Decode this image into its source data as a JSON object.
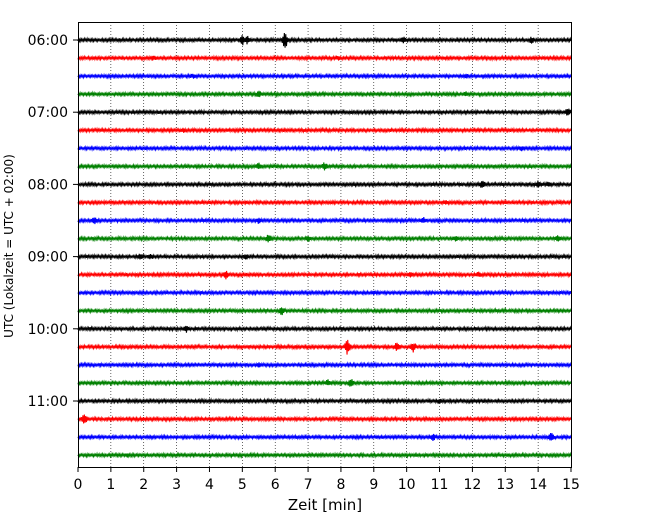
{
  "chart_data": {
    "type": "line",
    "title": "",
    "xlabel": "Zeit  [min]",
    "ylabel": "UTC (Lokalzeit = UTC + 02:00)",
    "xlim": [
      0,
      15
    ],
    "x_ticks": [
      0,
      1,
      2,
      3,
      4,
      5,
      6,
      7,
      8,
      9,
      10,
      11,
      12,
      13,
      14,
      15
    ],
    "grid": "vertical dotted",
    "trace_interval_minutes": 15,
    "y_tick_labels": [
      "06:00",
      "07:00",
      "08:00",
      "09:00",
      "10:00",
      "11:00"
    ],
    "series_colors": [
      "#000000",
      "#ff0000",
      "#0000ff",
      "#008000"
    ],
    "traces": [
      {
        "start": "06:00",
        "color": "#000000",
        "events": [
          {
            "t": 5.0,
            "amp": 5
          },
          {
            "t": 5.15,
            "amp": 4
          },
          {
            "t": 6.3,
            "amp": 8
          },
          {
            "t": 9.9,
            "amp": 3
          },
          {
            "t": 13.8,
            "amp": 3
          }
        ]
      },
      {
        "start": "06:15",
        "color": "#ff0000",
        "events": [
          {
            "t": 2.3,
            "amp": 2
          },
          {
            "t": 7.9,
            "amp": 2
          }
        ]
      },
      {
        "start": "06:30",
        "color": "#0000ff",
        "events": [
          {
            "t": 3.5,
            "amp": 2
          },
          {
            "t": 11.8,
            "amp": 2
          }
        ]
      },
      {
        "start": "06:45",
        "color": "#008000",
        "events": [
          {
            "t": 5.5,
            "amp": 3
          },
          {
            "t": 11.8,
            "amp": 2
          }
        ]
      },
      {
        "start": "07:00",
        "color": "#000000",
        "events": [
          {
            "t": 14.9,
            "amp": 4
          }
        ]
      },
      {
        "start": "07:15",
        "color": "#ff0000",
        "events": [
          {
            "t": 3.2,
            "amp": 2
          }
        ]
      },
      {
        "start": "07:30",
        "color": "#0000ff",
        "events": [
          {
            "t": 13.5,
            "amp": 2
          }
        ]
      },
      {
        "start": "07:45",
        "color": "#008000",
        "events": [
          {
            "t": 5.5,
            "amp": 3
          },
          {
            "t": 7.5,
            "amp": 4
          }
        ]
      },
      {
        "start": "08:00",
        "color": "#000000",
        "events": [
          {
            "t": 12.3,
            "amp": 4
          },
          {
            "t": 14.0,
            "amp": 3
          },
          {
            "t": 14.3,
            "amp": 2
          }
        ]
      },
      {
        "start": "08:15",
        "color": "#ff0000",
        "events": [
          {
            "t": 11.2,
            "amp": 2
          }
        ]
      },
      {
        "start": "08:30",
        "color": "#0000ff",
        "events": [
          {
            "t": 0.5,
            "amp": 4
          },
          {
            "t": 5.5,
            "amp": 3
          },
          {
            "t": 10.5,
            "amp": 3
          }
        ]
      },
      {
        "start": "08:45",
        "color": "#008000",
        "events": [
          {
            "t": 5.8,
            "amp": 4
          },
          {
            "t": 7.0,
            "amp": 3
          },
          {
            "t": 11.5,
            "amp": 3
          },
          {
            "t": 14.6,
            "amp": 3
          }
        ]
      },
      {
        "start": "09:00",
        "color": "#000000",
        "events": [
          {
            "t": 1.9,
            "amp": 3
          },
          {
            "t": 2.2,
            "amp": 3
          },
          {
            "t": 5.1,
            "amp": 3
          }
        ]
      },
      {
        "start": "09:15",
        "color": "#ff0000",
        "events": [
          {
            "t": 4.5,
            "amp": 4
          },
          {
            "t": 10.1,
            "amp": 3
          },
          {
            "t": 12.2,
            "amp": 3
          }
        ]
      },
      {
        "start": "09:30",
        "color": "#0000ff",
        "events": [
          {
            "t": 9.0,
            "amp": 2
          }
        ]
      },
      {
        "start": "09:45",
        "color": "#008000",
        "events": [
          {
            "t": 6.2,
            "amp": 4
          }
        ]
      },
      {
        "start": "10:00",
        "color": "#000000",
        "events": [
          {
            "t": 3.3,
            "amp": 3
          }
        ]
      },
      {
        "start": "10:15",
        "color": "#ff0000",
        "events": [
          {
            "t": 8.2,
            "amp": 8
          },
          {
            "t": 9.7,
            "amp": 4
          },
          {
            "t": 10.2,
            "amp": 5
          }
        ]
      },
      {
        "start": "10:30",
        "color": "#0000ff",
        "events": [
          {
            "t": 5.5,
            "amp": 2
          }
        ]
      },
      {
        "start": "10:45",
        "color": "#008000",
        "events": [
          {
            "t": 7.6,
            "amp": 3
          },
          {
            "t": 8.3,
            "amp": 4
          }
        ]
      },
      {
        "start": "11:00",
        "color": "#000000",
        "events": [
          {
            "t": 11.0,
            "amp": 2
          }
        ]
      },
      {
        "start": "11:15",
        "color": "#ff0000",
        "events": [
          {
            "t": 0.2,
            "amp": 5
          },
          {
            "t": 2.0,
            "amp": 2
          }
        ]
      },
      {
        "start": "11:30",
        "color": "#0000ff",
        "events": [
          {
            "t": 10.8,
            "amp": 3
          },
          {
            "t": 14.4,
            "amp": 4
          }
        ]
      },
      {
        "start": "11:45",
        "color": "#008000",
        "events": [
          {
            "t": 1.5,
            "amp": 2
          }
        ]
      }
    ]
  }
}
